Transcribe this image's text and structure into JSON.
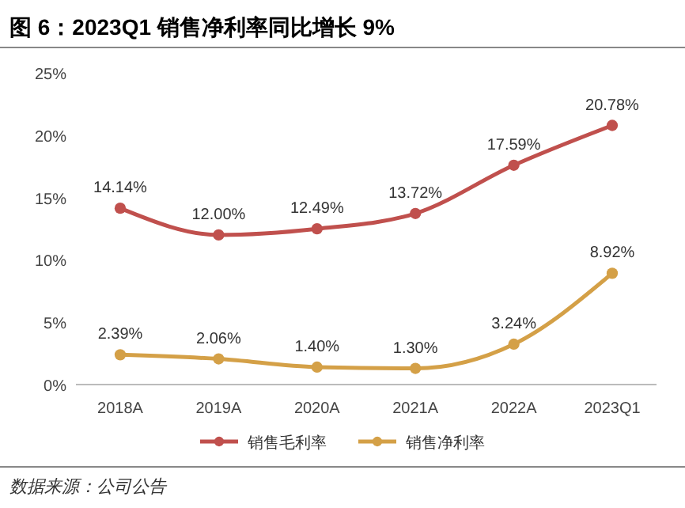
{
  "chart_data": {
    "type": "line",
    "title": "图 6：2023Q1 销售净利率同比增长 9%",
    "categories": [
      "2018A",
      "2019A",
      "2020A",
      "2021A",
      "2022A",
      "2023Q1"
    ],
    "series": [
      {
        "name": "销售毛利率",
        "color": "#c0504d",
        "values": [
          14.14,
          12.0,
          12.49,
          13.72,
          17.59,
          20.78
        ],
        "value_labels": [
          "14.14%",
          "12.00%",
          "12.49%",
          "13.72%",
          "17.59%",
          "20.78%"
        ]
      },
      {
        "name": "销售净利率",
        "color": "#d4a047",
        "values": [
          2.39,
          2.06,
          1.4,
          1.3,
          3.24,
          8.92
        ],
        "value_labels": [
          "2.39%",
          "2.06%",
          "1.40%",
          "1.30%",
          "3.24%",
          "8.92%"
        ]
      }
    ],
    "ylim": [
      0,
      25
    ],
    "yticks": [
      {
        "value": 0,
        "label": "0%"
      },
      {
        "value": 5,
        "label": "5%"
      },
      {
        "value": 10,
        "label": "10%"
      },
      {
        "value": 15,
        "label": "15%"
      },
      {
        "value": 20,
        "label": "20%"
      },
      {
        "value": 25,
        "label": "25%"
      }
    ],
    "marker": "circle",
    "legend": "bottom",
    "annotations": [
      "数据来源：公司公告"
    ]
  }
}
